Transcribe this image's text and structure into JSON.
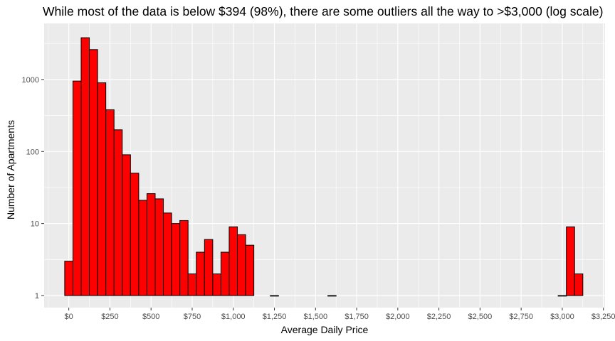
{
  "chart_data": {
    "type": "bar",
    "title": "While most of the data is below $394 (98%), there are some outliers all the way to >$3,000 (log scale)",
    "xlabel": "Average Daily Price",
    "ylabel": "Number of Apartments",
    "x_scale": "linear",
    "y_scale": "log10",
    "xlim": [
      -150,
      3260
    ],
    "ylim": [
      0.68,
      6000
    ],
    "x_ticks": [
      {
        "value": 0,
        "label": "$0"
      },
      {
        "value": 250,
        "label": "$250"
      },
      {
        "value": 500,
        "label": "$500"
      },
      {
        "value": 750,
        "label": "$750"
      },
      {
        "value": 1000,
        "label": "$1,000"
      },
      {
        "value": 1250,
        "label": "$1,250"
      },
      {
        "value": 1500,
        "label": "$1,500"
      },
      {
        "value": 1750,
        "label": "$1,750"
      },
      {
        "value": 2000,
        "label": "$2,000"
      },
      {
        "value": 2250,
        "label": "$2,250"
      },
      {
        "value": 2500,
        "label": "$2,500"
      },
      {
        "value": 2750,
        "label": "$2,750"
      },
      {
        "value": 3000,
        "label": "$3,000"
      },
      {
        "value": 3250,
        "label": "$3,250"
      }
    ],
    "y_ticks": [
      {
        "value": 1,
        "label": "1"
      },
      {
        "value": 10,
        "label": "10"
      },
      {
        "value": 100,
        "label": "100"
      },
      {
        "value": 1000,
        "label": "1000"
      }
    ],
    "bin_width": 50,
    "bins": [
      {
        "start": -25,
        "count": 3
      },
      {
        "start": 25,
        "count": 950
      },
      {
        "start": 75,
        "count": 3800
      },
      {
        "start": 125,
        "count": 2600
      },
      {
        "start": 175,
        "count": 900
      },
      {
        "start": 225,
        "count": 380
      },
      {
        "start": 275,
        "count": 200
      },
      {
        "start": 325,
        "count": 90
      },
      {
        "start": 375,
        "count": 50
      },
      {
        "start": 425,
        "count": 21
      },
      {
        "start": 475,
        "count": 26
      },
      {
        "start": 525,
        "count": 22
      },
      {
        "start": 575,
        "count": 14
      },
      {
        "start": 625,
        "count": 10
      },
      {
        "start": 675,
        "count": 11
      },
      {
        "start": 725,
        "count": 2
      },
      {
        "start": 775,
        "count": 4
      },
      {
        "start": 825,
        "count": 6
      },
      {
        "start": 875,
        "count": 2
      },
      {
        "start": 925,
        "count": 4
      },
      {
        "start": 975,
        "count": 9
      },
      {
        "start": 1025,
        "count": 7
      },
      {
        "start": 1075,
        "count": 5
      },
      {
        "start": 1225,
        "count": 1
      },
      {
        "start": 1575,
        "count": 1
      },
      {
        "start": 2975,
        "count": 1
      },
      {
        "start": 3025,
        "count": 9
      },
      {
        "start": 3075,
        "count": 2
      }
    ],
    "grid": true,
    "legend": "none",
    "colors": {
      "panel_background": "#ebebeb",
      "grid_major": "#ffffff",
      "bar_fill": "#ff0000",
      "bar_outline": "#000000",
      "tick_text": "#4d4d4d",
      "tick_mark": "#333333"
    }
  }
}
